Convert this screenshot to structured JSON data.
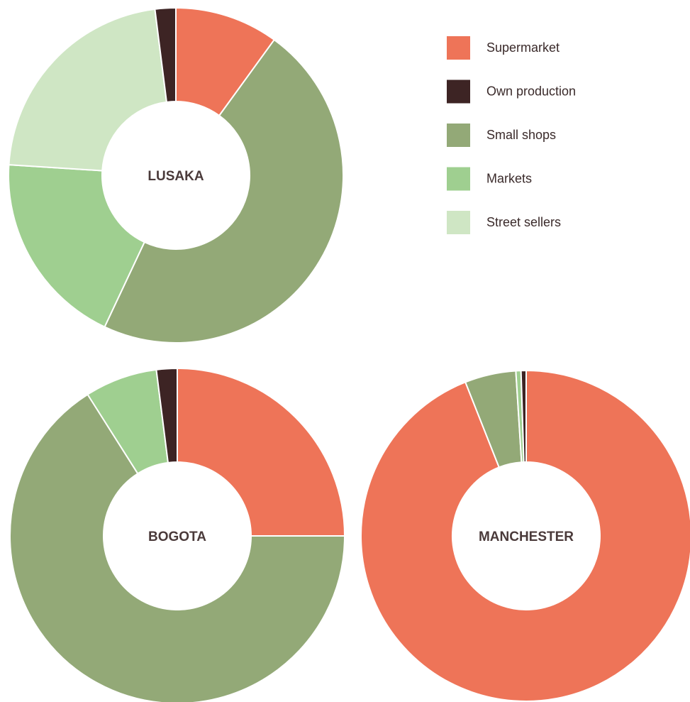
{
  "chart_data": {
    "type": "pie",
    "legend": {
      "position": "top-right",
      "entries": [
        {
          "name": "Supermarket",
          "color": "#ee7458"
        },
        {
          "name": "Own production",
          "color": "#3d2424"
        },
        {
          "name": "Small shops",
          "color": "#93a977"
        },
        {
          "name": "Markets",
          "color": "#9fcf90"
        },
        {
          "name": "Street sellers",
          "color": "#cfe6c4"
        }
      ]
    },
    "charts": [
      {
        "label": "LUSAKA",
        "slices": [
          {
            "name": "Supermarket",
            "value": 10
          },
          {
            "name": "Small shops",
            "value": 47
          },
          {
            "name": "Markets",
            "value": 19
          },
          {
            "name": "Street sellers",
            "value": 22
          },
          {
            "name": "Own production",
            "value": 2
          }
        ]
      },
      {
        "label": "BOGOTA",
        "slices": [
          {
            "name": "Supermarket",
            "value": 25
          },
          {
            "name": "Small shops",
            "value": 66
          },
          {
            "name": "Markets",
            "value": 7
          },
          {
            "name": "Own production",
            "value": 2
          }
        ]
      },
      {
        "label": "MANCHESTER",
        "slices": [
          {
            "name": "Supermarket",
            "value": 94
          },
          {
            "name": "Small shops",
            "value": 5
          },
          {
            "name": "Markets",
            "value": 0.5
          },
          {
            "name": "Own production",
            "value": 0.5
          }
        ]
      }
    ]
  }
}
